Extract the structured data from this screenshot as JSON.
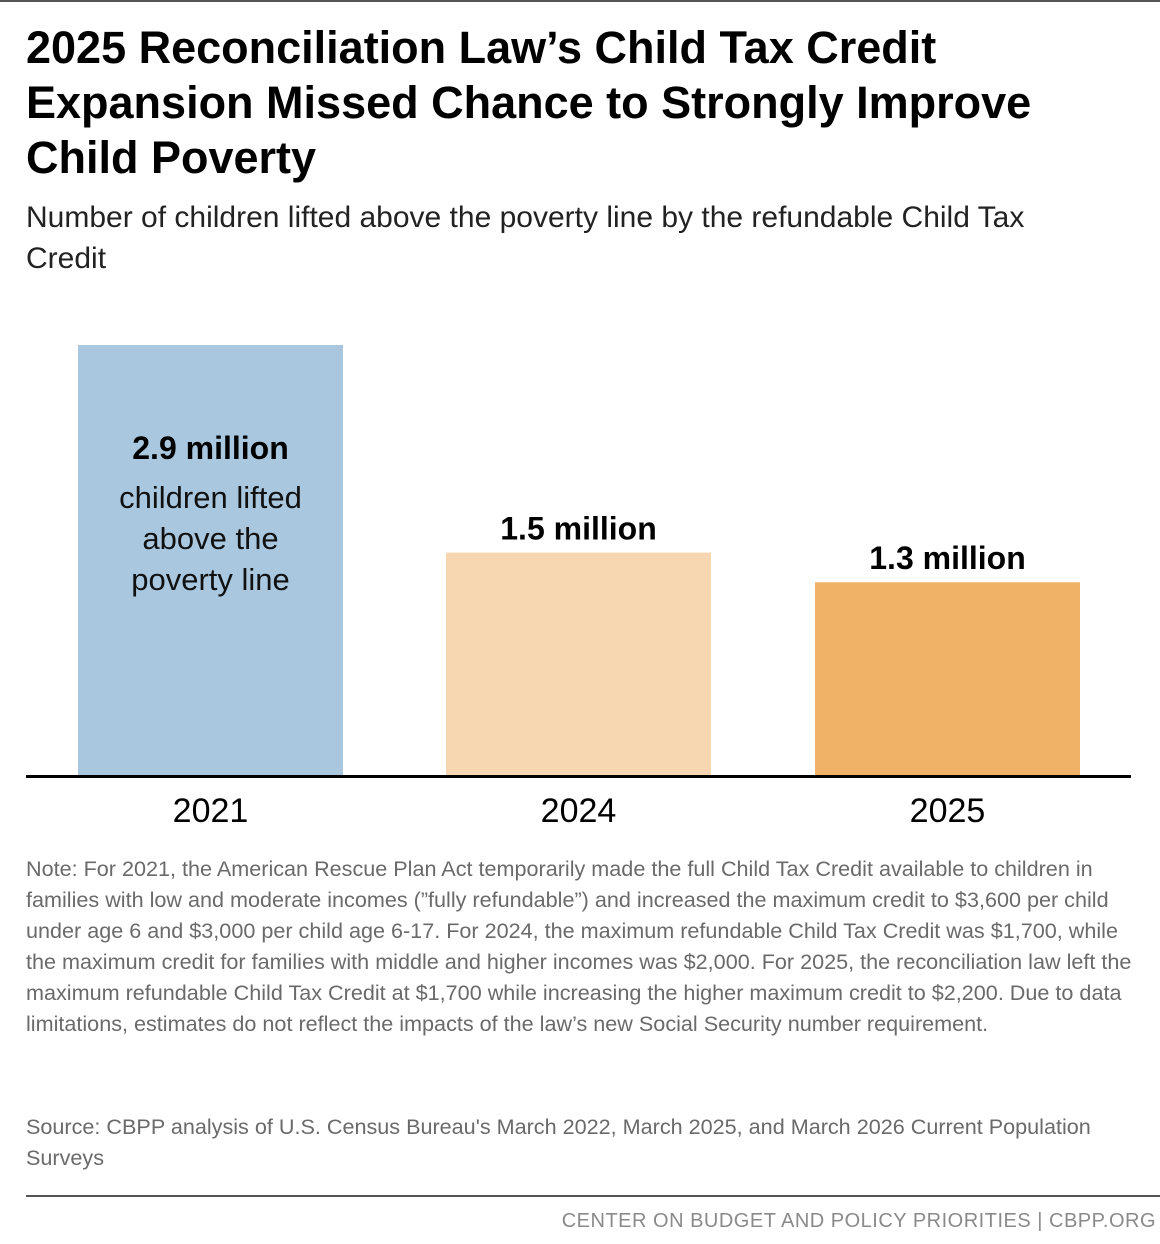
{
  "title": "2025 Reconciliation Law’s Child Tax Credit Expansion Missed Chance to Strongly Improve Child Poverty",
  "subtitle": "Number of children lifted above the poverty line by the refundable Child Tax Credit",
  "chart_data": {
    "type": "bar",
    "title": "2025 Reconciliation Law’s Child Tax Credit Expansion Missed Chance to Strongly Improve Child Poverty",
    "subtitle": "Number of children lifted above the poverty line by the refundable Child Tax Credit",
    "categories": [
      "2021",
      "2024",
      "2025"
    ],
    "values": [
      2.9,
      1.5,
      1.3
    ],
    "unit": "million",
    "data_labels": [
      "2.9 million",
      "1.5 million",
      "1.3 million"
    ],
    "first_bar_annotation": [
      "children lifted",
      "above the",
      "poverty line"
    ],
    "colors": [
      "#a9c8e0",
      "#f6d7b1",
      "#f0b266"
    ],
    "ylim": [
      0,
      2.9
    ],
    "xlabel": "",
    "ylabel": "",
    "grid": false,
    "legend": "none"
  },
  "note": "Note: For 2021, the American Rescue Plan Act temporarily made the full Child Tax Credit available to children in families with low and moderate incomes (”fully refundable”) and increased the maximum credit to $3,600 per child under age 6 and $3,000 per child age 6-17. For 2024, the maximum refundable Child Tax Credit was $1,700, while the maximum credit for families with middle and higher incomes was $2,000. For 2025, the reconciliation law left the maximum refundable Child Tax Credit at $1,700 while increasing the higher maximum credit to $2,200. Due to data limitations, estimates do not reflect the impacts of the law’s new Social Security number requirement.",
  "source": "Source: CBPP analysis of U.S. Census Bureau's March 2022, March 2025, and March 2026 Current Population Surveys",
  "footer": "CENTER ON BUDGET AND POLICY PRIORITIES | CBPP.ORG",
  "colors": {
    "axis": "#000000",
    "note_text": "#6a6a6a",
    "footer_text": "#8a8a8a",
    "rule": "#555555"
  }
}
